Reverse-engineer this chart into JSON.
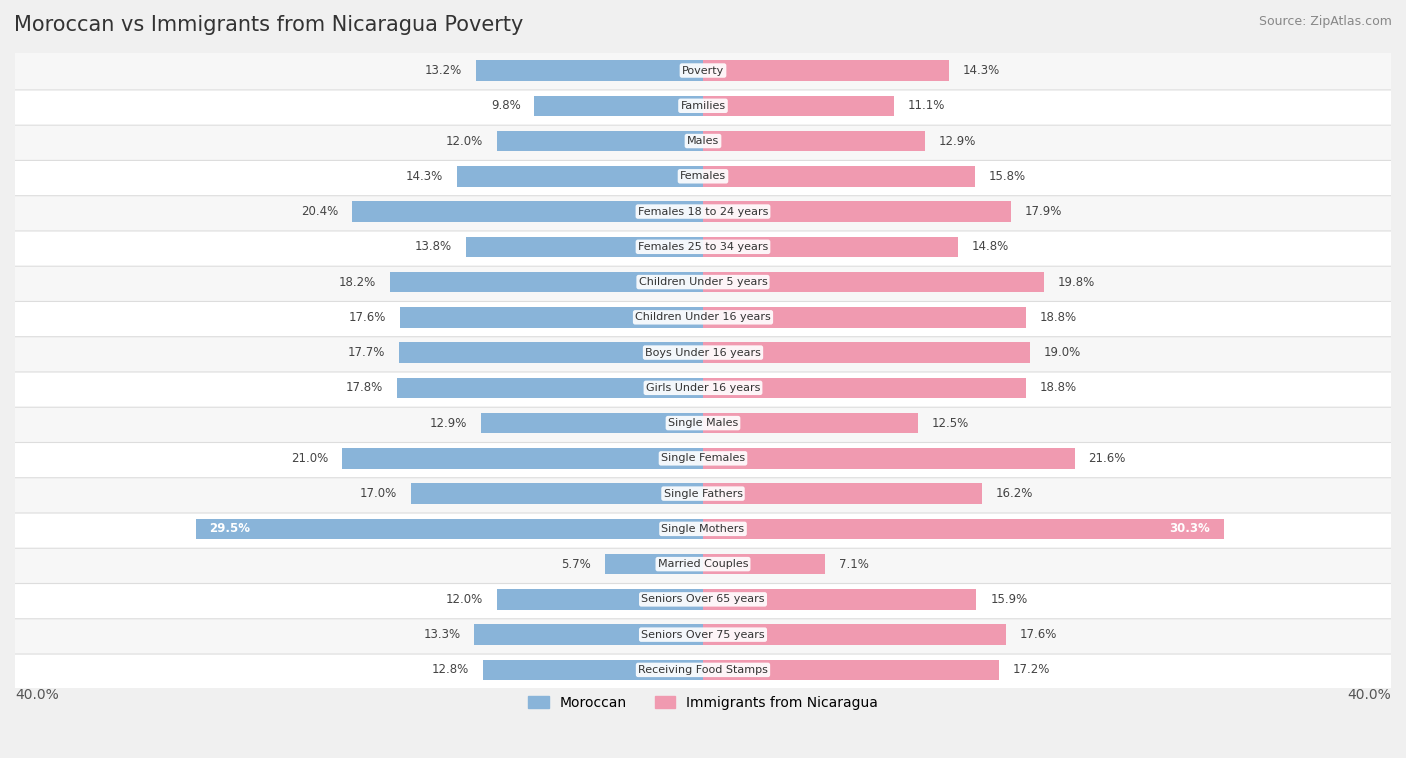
{
  "title": "Moroccan vs Immigrants from Nicaragua Poverty",
  "source": "Source: ZipAtlas.com",
  "categories": [
    "Poverty",
    "Families",
    "Males",
    "Females",
    "Females 18 to 24 years",
    "Females 25 to 34 years",
    "Children Under 5 years",
    "Children Under 16 years",
    "Boys Under 16 years",
    "Girls Under 16 years",
    "Single Males",
    "Single Females",
    "Single Fathers",
    "Single Mothers",
    "Married Couples",
    "Seniors Over 65 years",
    "Seniors Over 75 years",
    "Receiving Food Stamps"
  ],
  "moroccan": [
    13.2,
    9.8,
    12.0,
    14.3,
    20.4,
    13.8,
    18.2,
    17.6,
    17.7,
    17.8,
    12.9,
    21.0,
    17.0,
    29.5,
    5.7,
    12.0,
    13.3,
    12.8
  ],
  "nicaragua": [
    14.3,
    11.1,
    12.9,
    15.8,
    17.9,
    14.8,
    19.8,
    18.8,
    19.0,
    18.8,
    12.5,
    21.6,
    16.2,
    30.3,
    7.1,
    15.9,
    17.6,
    17.2
  ],
  "moroccan_color": "#89b4d9",
  "nicaragua_color": "#f09ab0",
  "bar_height": 0.58,
  "xlim": 40.0,
  "highlight_threshold": 25.0,
  "title_fontsize": 15,
  "source_fontsize": 9,
  "label_fontsize": 8.5,
  "cat_fontsize": 8,
  "legend_fontsize": 10
}
